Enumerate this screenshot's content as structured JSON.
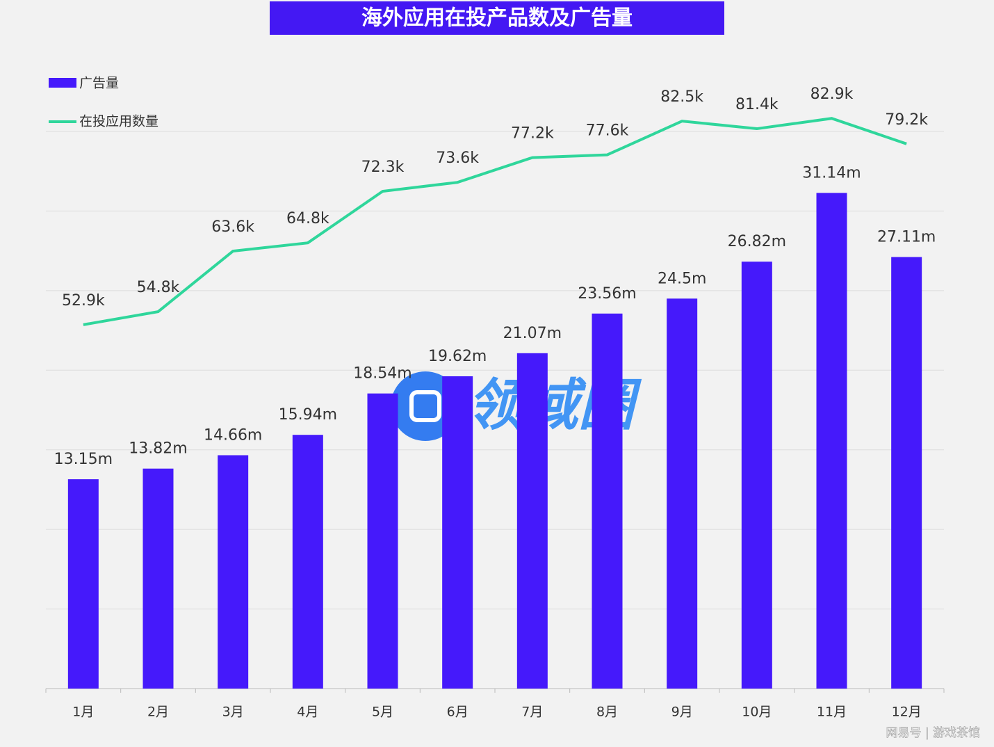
{
  "chart_data": {
    "type": "combo",
    "title": "海外应用在投产品数及广告量",
    "categories": [
      "1月",
      "2月",
      "3月",
      "4月",
      "5月",
      "6月",
      "7月",
      "8月",
      "9月",
      "10月",
      "11月",
      "12月"
    ],
    "series": [
      {
        "name": "广告量",
        "type": "bar",
        "color": "#4519fb",
        "values": [
          13.15,
          13.82,
          14.66,
          15.94,
          18.54,
          19.62,
          21.07,
          23.56,
          24.5,
          26.82,
          31.14,
          27.11
        ],
        "value_labels": [
          "13.15m",
          "13.82m",
          "14.66m",
          "15.94m",
          "18.54m",
          "19.62m",
          "21.07m",
          "23.56m",
          "24.5m",
          "26.82m",
          "31.14m",
          "27.11m"
        ]
      },
      {
        "name": "在投应用数量",
        "type": "line",
        "axis": "y2",
        "color": "#2fd69b",
        "values": [
          52.9,
          54.8,
          63.6,
          64.8,
          72.3,
          73.6,
          77.2,
          77.6,
          82.5,
          81.4,
          82.9,
          79.2
        ],
        "value_labels": [
          "52.9k",
          "54.8k",
          "63.6k",
          "64.8k",
          "72.3k",
          "73.6k",
          "77.2k",
          "77.6k",
          "82.5k",
          "81.4k",
          "82.9k",
          "79.2k"
        ]
      }
    ],
    "ylim": [
      0,
      35
    ],
    "yticks": [
      0,
      5,
      10,
      15,
      20,
      25,
      30,
      35
    ],
    "y2lim": [
      0,
      81
    ],
    "grid": true,
    "watermark": "领域圈",
    "footer": "网易号 | 游戏茶馆"
  }
}
